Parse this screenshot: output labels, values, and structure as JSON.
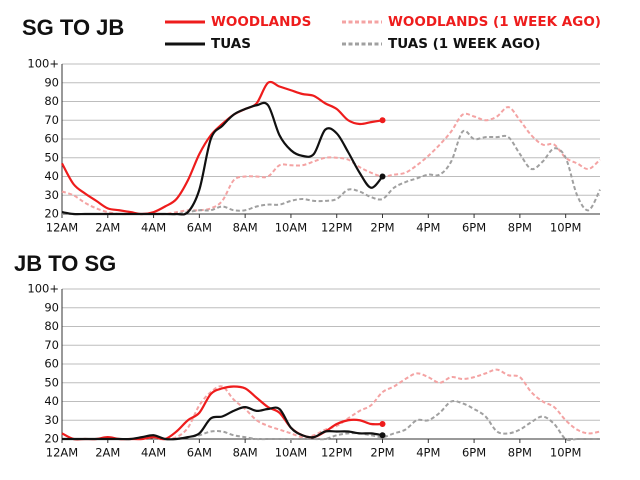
{
  "chart_data": [
    {
      "type": "line",
      "title": "SG TO JB",
      "xlim": [
        0,
        23.5
      ],
      "xticks": [
        {
          "value": 0,
          "label": "12AM"
        },
        {
          "value": 2,
          "label": "2AM"
        },
        {
          "value": 4,
          "label": "4AM"
        },
        {
          "value": 6,
          "label": "6AM"
        },
        {
          "value": 8,
          "label": "8AM"
        },
        {
          "value": 10,
          "label": "10AM"
        },
        {
          "value": 12,
          "label": "12PM"
        },
        {
          "value": 14,
          "label": "2PM"
        },
        {
          "value": 16,
          "label": "4PM"
        },
        {
          "value": 18,
          "label": "6PM"
        },
        {
          "value": 20,
          "label": "8PM"
        },
        {
          "value": 22,
          "label": "10PM"
        }
      ],
      "ylim": [
        20,
        100
      ],
      "yticks": [
        20,
        30,
        40,
        50,
        60,
        70,
        80,
        90,
        {
          "value": 100,
          "label": "100+"
        }
      ],
      "grid": true,
      "series": [
        {
          "name": "WOODLANDS (1 WEEK AGO)",
          "color": "#f4a3a3",
          "text_color": "#ee1c1c",
          "dash": true,
          "x": [
            0,
            0.5,
            1,
            1.5,
            2,
            2.5,
            3,
            3.5,
            4,
            4.5,
            5,
            5.5,
            6,
            6.5,
            7,
            7.5,
            8,
            8.5,
            9,
            9.5,
            10,
            10.5,
            11,
            11.5,
            12,
            12.5,
            13,
            13.5,
            14,
            14.5,
            15,
            15.5,
            16,
            16.5,
            17,
            17.5,
            18,
            18.5,
            19,
            19.5,
            20,
            20.5,
            21,
            21.5,
            22,
            22.5,
            23,
            23.5
          ],
          "values": [
            32,
            30,
            26,
            23,
            21,
            20,
            20,
            20,
            20,
            20,
            21,
            22,
            22,
            23,
            27,
            38,
            40,
            40,
            40,
            46,
            46,
            46,
            48,
            50,
            50,
            49,
            45,
            42,
            40,
            41,
            42,
            46,
            51,
            57,
            64,
            73,
            72,
            70,
            72,
            77,
            70,
            62,
            57,
            57,
            50,
            47,
            44,
            49
          ]
        },
        {
          "name": "TUAS (1 WEEK AGO)",
          "color": "#a0a0a0",
          "text_color": "#111111",
          "dash": true,
          "x": [
            0,
            0.5,
            1,
            1.5,
            2,
            2.5,
            3,
            3.5,
            4,
            4.5,
            5,
            5.5,
            6,
            6.5,
            7,
            7.5,
            8,
            8.5,
            9,
            9.5,
            10,
            10.5,
            11,
            11.5,
            12,
            12.5,
            13,
            13.5,
            14,
            14.5,
            15,
            15.5,
            16,
            16.5,
            17,
            17.5,
            18,
            18.5,
            19,
            19.5,
            20,
            20.5,
            21,
            21.5,
            22,
            22.5,
            23,
            23.5
          ],
          "values": [
            20,
            20,
            20,
            20,
            20,
            20,
            20,
            20,
            20,
            20,
            20,
            21,
            22,
            22,
            24,
            22,
            22,
            24,
            25,
            25,
            27,
            28,
            27,
            27,
            28,
            33,
            32,
            29,
            28,
            34,
            37,
            39,
            41,
            41,
            48,
            64,
            60,
            61,
            61,
            61,
            52,
            44,
            48,
            55,
            50,
            30,
            22,
            33
          ]
        },
        {
          "name": "WOODLANDS",
          "color": "#ee1c1c",
          "text_color": "#ee1c1c",
          "dash": false,
          "x": [
            0,
            0.5,
            1,
            1.5,
            2,
            2.5,
            3,
            3.5,
            4,
            4.5,
            5,
            5.5,
            6,
            6.5,
            7,
            7.5,
            8,
            8.5,
            9,
            9.5,
            10,
            10.5,
            11,
            11.5,
            12,
            12.5,
            13,
            13.5,
            14
          ],
          "values": [
            47,
            36,
            31,
            27,
            23,
            22,
            21,
            20,
            21,
            24,
            28,
            38,
            52,
            62,
            68,
            73,
            76,
            79,
            90,
            88,
            86,
            84,
            83,
            79,
            76,
            70,
            68,
            69,
            70
          ]
        },
        {
          "name": "TUAS",
          "color": "#111111",
          "text_color": "#111111",
          "dash": false,
          "x": [
            0,
            0.5,
            1,
            1.5,
            2,
            2.5,
            3,
            3.5,
            4,
            4.5,
            5,
            5.5,
            6,
            6.5,
            7,
            7.5,
            8,
            8.5,
            9,
            9.5,
            10,
            10.5,
            11,
            11.5,
            12,
            12.5,
            13,
            13.5,
            14
          ],
          "values": [
            21,
            20,
            20,
            20,
            20,
            20,
            20,
            20,
            20,
            20,
            20,
            21,
            33,
            60,
            67,
            73,
            76,
            78,
            78,
            62,
            54,
            51,
            52,
            65,
            63,
            53,
            42,
            34,
            40
          ]
        }
      ]
    },
    {
      "type": "line",
      "title": "JB TO SG",
      "xlim": [
        0,
        23.5
      ],
      "xticks": [
        {
          "value": 0,
          "label": "12AM"
        },
        {
          "value": 2,
          "label": "2AM"
        },
        {
          "value": 4,
          "label": "4AM"
        },
        {
          "value": 6,
          "label": "6AM"
        },
        {
          "value": 8,
          "label": "8AM"
        },
        {
          "value": 10,
          "label": "10AM"
        },
        {
          "value": 12,
          "label": "12PM"
        },
        {
          "value": 14,
          "label": "2PM"
        },
        {
          "value": 16,
          "label": "4PM"
        },
        {
          "value": 18,
          "label": "6PM"
        },
        {
          "value": 20,
          "label": "8PM"
        },
        {
          "value": 22,
          "label": "10PM"
        }
      ],
      "ylim": [
        20,
        100
      ],
      "yticks": [
        20,
        30,
        40,
        50,
        60,
        70,
        80,
        90,
        {
          "value": 100,
          "label": "100+"
        }
      ],
      "grid": true,
      "series": [
        {
          "color": "#f4a3a3",
          "dash": true,
          "x": [
            0,
            0.5,
            1,
            1.5,
            2,
            2.5,
            3,
            3.5,
            4,
            4.5,
            5,
            5.5,
            6,
            6.5,
            7,
            7.5,
            8,
            8.5,
            9,
            9.5,
            10,
            10.5,
            11,
            11.5,
            12,
            12.5,
            13,
            13.5,
            14,
            14.5,
            15,
            15.5,
            16,
            16.5,
            17,
            17.5,
            18,
            18.5,
            19,
            19.5,
            20,
            20.5,
            21,
            21.5,
            22,
            22.5,
            23,
            23.5
          ],
          "values": [
            20,
            20,
            20,
            20,
            20,
            20,
            20,
            20,
            20,
            20,
            21,
            26,
            38,
            45,
            48,
            41,
            36,
            30,
            27,
            25,
            23,
            21,
            22,
            25,
            27,
            31,
            35,
            38,
            45,
            48,
            52,
            55,
            53,
            50,
            53,
            52,
            53,
            55,
            57,
            54,
            53,
            45,
            40,
            37,
            30,
            25,
            23,
            24
          ]
        },
        {
          "color": "#a0a0a0",
          "dash": true,
          "x": [
            0,
            0.5,
            1,
            1.5,
            2,
            2.5,
            3,
            3.5,
            4,
            4.5,
            5,
            5.5,
            6,
            6.5,
            7,
            7.5,
            8,
            8.5,
            9,
            9.5,
            10,
            10.5,
            11,
            11.5,
            12,
            12.5,
            13,
            13.5,
            14,
            14.5,
            15,
            15.5,
            16,
            16.5,
            17,
            17.5,
            18,
            18.5,
            19,
            19.5,
            20,
            20.5,
            21,
            21.5,
            22,
            22.5,
            23,
            23.5
          ],
          "values": [
            20,
            20,
            20,
            20,
            20,
            20,
            20,
            20,
            20,
            20,
            20,
            21,
            22,
            24,
            24,
            22,
            21,
            20,
            20,
            20,
            20,
            20,
            20,
            20,
            22,
            23,
            23,
            22,
            21,
            23,
            25,
            30,
            30,
            34,
            40,
            39,
            36,
            32,
            24,
            23,
            25,
            29,
            32,
            28,
            20,
            20,
            20,
            20
          ]
        },
        {
          "color": "#ee1c1c",
          "dash": false,
          "x": [
            0,
            0.5,
            1,
            1.5,
            2,
            2.5,
            3,
            3.5,
            4,
            4.5,
            5,
            5.5,
            6,
            6.5,
            7,
            7.5,
            8,
            8.5,
            9,
            9.5,
            10,
            10.5,
            11,
            11.5,
            12,
            12.5,
            13,
            13.5,
            14
          ],
          "values": [
            23,
            20,
            20,
            20,
            21,
            20,
            20,
            20,
            21,
            20,
            24,
            30,
            34,
            44,
            47,
            48,
            47,
            42,
            37,
            34,
            26,
            22,
            21,
            24,
            28,
            30,
            30,
            28,
            28
          ]
        },
        {
          "color": "#111111",
          "dash": false,
          "x": [
            0,
            0.5,
            1,
            1.5,
            2,
            2.5,
            3,
            3.5,
            4,
            4.5,
            5,
            5.5,
            6,
            6.5,
            7,
            7.5,
            8,
            8.5,
            9,
            9.5,
            10,
            10.5,
            11,
            11.5,
            12,
            12.5,
            13,
            13.5,
            14
          ],
          "values": [
            20,
            20,
            20,
            20,
            20,
            20,
            20,
            21,
            22,
            20,
            20,
            21,
            23,
            31,
            32,
            35,
            37,
            35,
            36,
            36,
            26,
            22,
            21,
            24,
            24,
            24,
            23,
            23,
            22
          ]
        }
      ]
    }
  ]
}
